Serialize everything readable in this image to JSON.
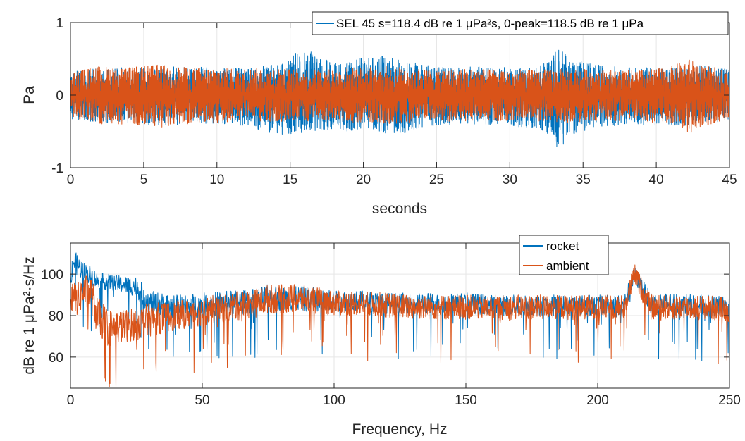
{
  "chart_data": [
    {
      "type": "line",
      "xlabel": "seconds",
      "ylabel": "Pa",
      "xlim": [
        0,
        45
      ],
      "ylim": [
        -1,
        1
      ],
      "xticks": [
        0,
        5,
        10,
        15,
        20,
        25,
        30,
        35,
        40,
        45
      ],
      "yticks": [
        -1,
        0,
        1
      ],
      "grid": true,
      "legend_position": "top-right",
      "legend": {
        "text": "SEL 45 s=118.4 dB re 1 μPa²s, 0-peak=118.5 dB re 1 μPa",
        "color": "#0072BD"
      },
      "series": [
        {
          "color": "#0072BD",
          "envelope_x": [
            0,
            2,
            4,
            6,
            8,
            10,
            12,
            14,
            15,
            15.8,
            17,
            19,
            20,
            22.3,
            24,
            26,
            28,
            30,
            32,
            33,
            33.3,
            34,
            36,
            38,
            40,
            42,
            43,
            45
          ],
          "envelope_upper": [
            0.33,
            0.37,
            0.38,
            0.4,
            0.39,
            0.38,
            0.37,
            0.42,
            0.48,
            0.7,
            0.5,
            0.45,
            0.55,
            0.52,
            0.42,
            0.38,
            0.4,
            0.38,
            0.4,
            0.55,
            0.72,
            0.5,
            0.42,
            0.38,
            0.38,
            0.4,
            0.42,
            0.35
          ],
          "envelope_lower": [
            -0.33,
            -0.38,
            -0.39,
            -0.42,
            -0.4,
            -0.4,
            -0.42,
            -0.55,
            -0.58,
            -0.52,
            -0.48,
            -0.5,
            -0.48,
            -0.55,
            -0.45,
            -0.4,
            -0.4,
            -0.42,
            -0.48,
            -0.6,
            -0.82,
            -0.55,
            -0.45,
            -0.4,
            -0.42,
            -0.42,
            -0.4,
            -0.35
          ]
        },
        {
          "color": "#D95319",
          "envelope_x": [
            0,
            2,
            4,
            6,
            8,
            10,
            12,
            14,
            16,
            18,
            20,
            22,
            24,
            26,
            28,
            30,
            32,
            34,
            36,
            38,
            40,
            41,
            42,
            42.5,
            43,
            44,
            45
          ],
          "envelope_upper": [
            0.32,
            0.4,
            0.38,
            0.42,
            0.38,
            0.37,
            0.36,
            0.38,
            0.35,
            0.36,
            0.38,
            0.4,
            0.36,
            0.37,
            0.36,
            0.34,
            0.35,
            0.37,
            0.35,
            0.34,
            0.36,
            0.4,
            0.48,
            0.5,
            0.42,
            0.38,
            0.33
          ],
          "envelope_lower": [
            -0.32,
            -0.4,
            -0.42,
            -0.45,
            -0.4,
            -0.38,
            -0.36,
            -0.38,
            -0.36,
            -0.38,
            -0.38,
            -0.4,
            -0.36,
            -0.37,
            -0.36,
            -0.35,
            -0.36,
            -0.38,
            -0.35,
            -0.36,
            -0.38,
            -0.4,
            -0.5,
            -0.52,
            -0.45,
            -0.38,
            -0.33
          ]
        }
      ]
    },
    {
      "type": "line",
      "xlabel": "Frequency, Hz",
      "ylabel": "dB re 1 μPa²·s/Hz",
      "xlim": [
        0,
        250
      ],
      "ylim": [
        45,
        115
      ],
      "xticks": [
        0,
        50,
        100,
        150,
        200,
        250
      ],
      "yticks": [
        60,
        80,
        100
      ],
      "grid": true,
      "legend_position": "top-right",
      "series": [
        {
          "name": "rocket",
          "color": "#0072BD",
          "x": [
            0,
            1,
            3,
            5,
            8,
            10,
            15,
            20,
            25,
            30,
            40,
            50,
            60,
            70,
            75,
            80,
            90,
            100,
            110,
            120,
            130,
            140,
            150,
            160,
            170,
            180,
            190,
            200,
            210,
            214,
            220,
            230,
            240,
            250
          ],
          "y": [
            98,
            106,
            104,
            101,
            99,
            97,
            96,
            95,
            94,
            86,
            84,
            85,
            86,
            87,
            89,
            88,
            88,
            87,
            87,
            86,
            86,
            86,
            86,
            85,
            85,
            85,
            85,
            85,
            85,
            100,
            86,
            86,
            85,
            84
          ],
          "spread": [
            6,
            6,
            5,
            5,
            5,
            4,
            4,
            4,
            5,
            6,
            6,
            6,
            6,
            6,
            6,
            6,
            6,
            5,
            5,
            5,
            5,
            5,
            5,
            5,
            5,
            5,
            5,
            5,
            5,
            4,
            5,
            5,
            5,
            5
          ]
        },
        {
          "name": "ambient",
          "color": "#D95319",
          "x": [
            0,
            1,
            3,
            5,
            8,
            10,
            15,
            20,
            25,
            30,
            40,
            50,
            60,
            70,
            75,
            80,
            90,
            100,
            110,
            120,
            130,
            140,
            150,
            160,
            170,
            180,
            190,
            200,
            210,
            214,
            220,
            230,
            240,
            250
          ],
          "y": [
            92,
            88,
            88,
            92,
            90,
            80,
            74,
            75,
            76,
            78,
            80,
            82,
            84,
            86,
            88,
            88,
            88,
            86,
            86,
            85,
            84,
            84,
            84,
            84,
            84,
            84,
            84,
            84,
            84,
            100,
            84,
            84,
            84,
            83
          ],
          "spread": [
            9,
            8,
            8,
            8,
            9,
            9,
            9,
            8,
            8,
            8,
            7,
            7,
            7,
            7,
            7,
            7,
            7,
            6,
            6,
            6,
            6,
            6,
            6,
            6,
            6,
            6,
            6,
            6,
            6,
            5,
            6,
            6,
            6,
            6
          ]
        }
      ]
    }
  ]
}
